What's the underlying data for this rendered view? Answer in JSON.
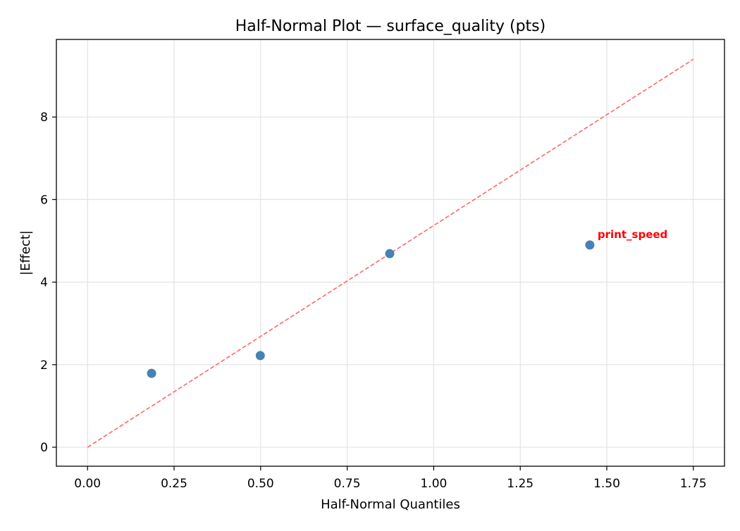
{
  "chart_data": {
    "type": "scatter",
    "title": "Half-Normal Plot — surface_quality (pts)",
    "xlabel": "Half-Normal Quantiles",
    "ylabel": "|Effect|",
    "xlim": [
      -0.09,
      1.84
    ],
    "ylim": [
      -0.46,
      9.88
    ],
    "xticks": [
      0.0,
      0.25,
      0.5,
      0.75,
      1.0,
      1.25,
      1.5,
      1.75
    ],
    "xtick_labels": [
      "0.00",
      "0.25",
      "0.50",
      "0.75",
      "1.00",
      "1.25",
      "1.50",
      "1.75"
    ],
    "yticks": [
      0,
      2,
      4,
      6,
      8
    ],
    "ytick_labels": [
      "0",
      "2",
      "4",
      "6",
      "8"
    ],
    "grid": true,
    "points": [
      {
        "x": 0.185,
        "y": 1.79,
        "label": ""
      },
      {
        "x": 0.499,
        "y": 2.22,
        "label": ""
      },
      {
        "x": 0.873,
        "y": 4.69,
        "label": ""
      },
      {
        "x": 1.451,
        "y": 4.9,
        "label": "print_speed"
      }
    ],
    "reference_line": {
      "x": [
        0,
        1.75
      ],
      "y": [
        0,
        9.4
      ],
      "style": "dashed"
    },
    "colors": {
      "points": "#4682b4",
      "reference_line": "#ff6666",
      "annotation": "#ff0000"
    }
  }
}
